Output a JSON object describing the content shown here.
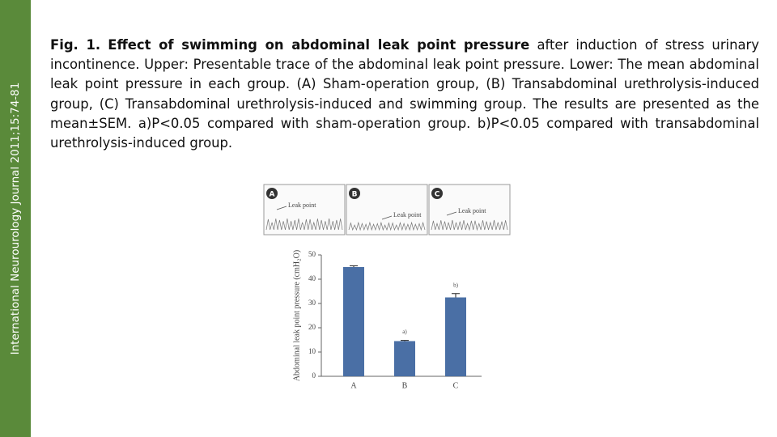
{
  "sidebar": "International Neurourology Journal 2011;15:74-81",
  "caption": {
    "label": "Fig. 1.",
    "title": "Effect of swimming on abdominal leak point pressure",
    "text": "after induction of stress urinary incontinence. Upper: Presentable trace of the abdominal leak point pressure. Lower: The mean abdominal leak point pressure in each group. (A) Sham-operation group, (B) Transabdominal urethrolysis-induced group, (C) Transabdominal urethrolysis-induced and swimming group. The results are presented as the mean±SEM. a)P<0.05 compared with sham-operation group. b)P<0.05 compared with transabdominal urethrolysis-induced group."
  },
  "trace_panels": [
    {
      "letter": "A",
      "label": "Leak point"
    },
    {
      "letter": "B",
      "label": "Leak point"
    },
    {
      "letter": "C",
      "label": "Leak point"
    }
  ],
  "chart_data": {
    "type": "bar",
    "y_label": "Abdominal leak point pressure (cmH₂O)",
    "categories": [
      "A",
      "B",
      "C"
    ],
    "values": [
      45,
      14.5,
      32.5
    ],
    "errors": [
      0.5,
      0.3,
      1.6
    ],
    "value_labels": [
      null,
      "a)",
      "b)"
    ],
    "color": "#4a6fa5",
    "ylim": [
      0,
      50
    ],
    "yticks": [
      0,
      10,
      20,
      30,
      40,
      50
    ]
  }
}
